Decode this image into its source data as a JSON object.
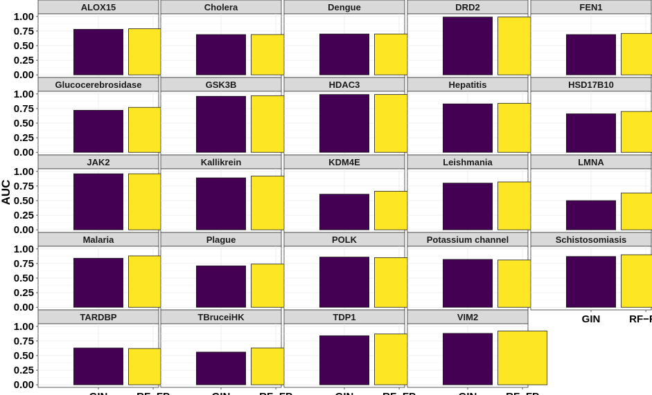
{
  "chart_data": {
    "type": "bar",
    "ylabel": "AUC",
    "ylim": [
      0,
      1
    ],
    "y_ticks": [
      "0.00",
      "0.25",
      "0.50",
      "0.75",
      "1.00"
    ],
    "categories": [
      "GIN",
      "RF−FP"
    ],
    "colors": {
      "GIN": "#440154",
      "RF−FP": "#FDE725"
    },
    "grid": true,
    "panel_background": "#ffffff",
    "strip_background": "#d9d9d9",
    "facets": [
      {
        "name": "ALOX15",
        "values": [
          0.78,
          0.79
        ]
      },
      {
        "name": "Cholera",
        "values": [
          0.69,
          0.69
        ]
      },
      {
        "name": "Dengue",
        "values": [
          0.7,
          0.7
        ]
      },
      {
        "name": "DRD2",
        "values": [
          0.99,
          0.99
        ]
      },
      {
        "name": "FEN1",
        "values": [
          0.69,
          0.71
        ]
      },
      {
        "name": "Glucocerebrosidase",
        "values": [
          0.72,
          0.77
        ]
      },
      {
        "name": "GSK3B",
        "values": [
          0.96,
          0.97
        ]
      },
      {
        "name": "HDAC3",
        "values": [
          0.99,
          0.99
        ]
      },
      {
        "name": "Hepatitis",
        "values": [
          0.83,
          0.84
        ]
      },
      {
        "name": "HSD17B10",
        "values": [
          0.66,
          0.7
        ]
      },
      {
        "name": "JAK2",
        "values": [
          0.96,
          0.96
        ]
      },
      {
        "name": "Kallikrein",
        "values": [
          0.89,
          0.92
        ]
      },
      {
        "name": "KDM4E",
        "values": [
          0.61,
          0.66
        ]
      },
      {
        "name": "Leishmania",
        "values": [
          0.8,
          0.82
        ]
      },
      {
        "name": "LMNA",
        "values": [
          0.5,
          0.63
        ]
      },
      {
        "name": "Malaria",
        "values": [
          0.84,
          0.88
        ]
      },
      {
        "name": "Plague",
        "values": [
          0.71,
          0.74
        ]
      },
      {
        "name": "POLK",
        "values": [
          0.86,
          0.85
        ]
      },
      {
        "name": "Potassium channel",
        "values": [
          0.82,
          0.81
        ]
      },
      {
        "name": "Schistosomiasis",
        "values": [
          0.87,
          0.9
        ]
      },
      {
        "name": "TARDBP",
        "values": [
          0.63,
          0.62
        ]
      },
      {
        "name": "TBruceiHK",
        "values": [
          0.56,
          0.63
        ]
      },
      {
        "name": "TDP1",
        "values": [
          0.84,
          0.87
        ]
      },
      {
        "name": "VIM2",
        "values": [
          0.88,
          0.92
        ]
      }
    ]
  }
}
